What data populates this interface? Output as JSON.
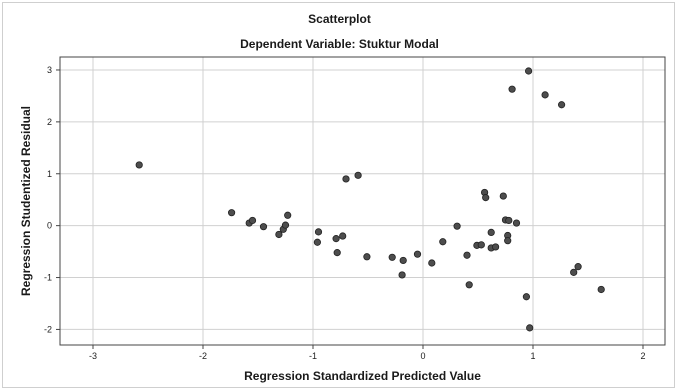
{
  "chart_data": {
    "type": "scatter",
    "title": "Scatterplot",
    "subtitle": "Dependent Variable: Stuktur Modal",
    "xlabel": "Regression Standardized Predicted Value",
    "ylabel": "Regression Studentized Residual",
    "xlim": [
      -3.3,
      2.2
    ],
    "ylim": [
      -2.3,
      3.25
    ],
    "xticks": [
      -3,
      -2,
      -1,
      0,
      1,
      2
    ],
    "yticks": [
      -2,
      -1,
      0,
      1,
      2,
      3
    ],
    "grid": true,
    "point_color": "#4d4d4d",
    "points": [
      {
        "x": -2.58,
        "y": 1.17
      },
      {
        "x": -1.74,
        "y": 0.25
      },
      {
        "x": -1.58,
        "y": 0.05
      },
      {
        "x": -1.55,
        "y": 0.1
      },
      {
        "x": -1.45,
        "y": -0.02
      },
      {
        "x": -1.31,
        "y": -0.17
      },
      {
        "x": -1.27,
        "y": -0.07
      },
      {
        "x": -1.25,
        "y": 0.01
      },
      {
        "x": -1.23,
        "y": 0.2
      },
      {
        "x": -0.95,
        "y": -0.12
      },
      {
        "x": -0.96,
        "y": -0.32
      },
      {
        "x": -0.79,
        "y": -0.25
      },
      {
        "x": -0.73,
        "y": -0.2
      },
      {
        "x": -0.78,
        "y": -0.52
      },
      {
        "x": -0.7,
        "y": 0.9
      },
      {
        "x": -0.59,
        "y": 0.97
      },
      {
        "x": -0.51,
        "y": -0.6
      },
      {
        "x": -0.28,
        "y": -0.61
      },
      {
        "x": -0.18,
        "y": -0.67
      },
      {
        "x": -0.19,
        "y": -0.95
      },
      {
        "x": -0.05,
        "y": -0.55
      },
      {
        "x": 0.08,
        "y": -0.72
      },
      {
        "x": 0.18,
        "y": -0.31
      },
      {
        "x": 0.31,
        "y": -0.01
      },
      {
        "x": 0.4,
        "y": -0.57
      },
      {
        "x": 0.42,
        "y": -1.14
      },
      {
        "x": 0.49,
        "y": -0.38
      },
      {
        "x": 0.53,
        "y": -0.37
      },
      {
        "x": 0.56,
        "y": 0.64
      },
      {
        "x": 0.57,
        "y": 0.54
      },
      {
        "x": 0.62,
        "y": -0.43
      },
      {
        "x": 0.62,
        "y": -0.13
      },
      {
        "x": 0.66,
        "y": -0.41
      },
      {
        "x": 0.73,
        "y": 0.57
      },
      {
        "x": 0.75,
        "y": 0.11
      },
      {
        "x": 0.77,
        "y": -0.19
      },
      {
        "x": 0.78,
        "y": 0.1
      },
      {
        "x": 0.77,
        "y": -0.29
      },
      {
        "x": 0.85,
        "y": 0.05
      },
      {
        "x": 0.81,
        "y": 2.63
      },
      {
        "x": 0.96,
        "y": 2.98
      },
      {
        "x": 1.11,
        "y": 2.52
      },
      {
        "x": 1.26,
        "y": 2.33
      },
      {
        "x": 0.94,
        "y": -1.37
      },
      {
        "x": 0.97,
        "y": -1.97
      },
      {
        "x": 1.37,
        "y": -0.9
      },
      {
        "x": 1.41,
        "y": -0.79
      },
      {
        "x": 1.62,
        "y": -1.23
      }
    ]
  }
}
